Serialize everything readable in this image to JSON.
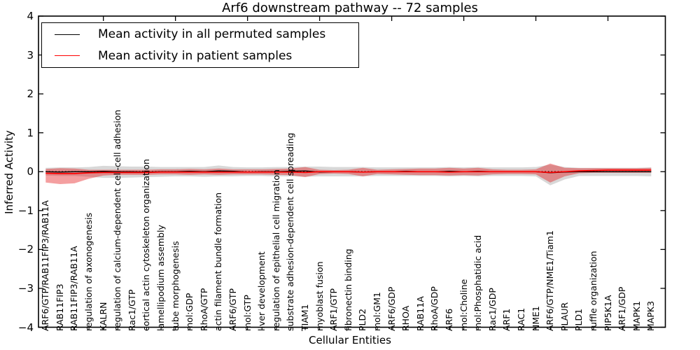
{
  "title": "Arf6 downstream pathway -- 72 samples",
  "axes": {
    "ylabel": "Inferred Activity",
    "xlabel": "Cellular Entities",
    "yticks": [
      4,
      3,
      2,
      1,
      0,
      -1,
      -2,
      -3,
      -4
    ],
    "ylim": [
      -4,
      4
    ]
  },
  "legend": {
    "position": "upper left",
    "items": [
      {
        "label": "Mean activity in all permuted samples",
        "color": "#000000"
      },
      {
        "label": "Mean activity in patient samples",
        "color": "#ff0000"
      }
    ]
  },
  "chart_data": {
    "type": "line",
    "title": "Arf6 downstream pathway -- 72 samples",
    "xlabel": "Cellular Entities",
    "ylabel": "Inferred Activity",
    "ylim": [
      -4,
      4
    ],
    "grid": false,
    "zero_line_dotted": true,
    "legend_position": "upper left",
    "categories": [
      "ARF6/GTP/RAB11FIP3/RAB11A",
      "RAB11FIP3",
      "RAB11FIP3/RAB11A",
      "regulation of axonogenesis",
      "KALRN",
      "regulation of calcium-dependent cell-cell adhesion",
      "Rac1/GTP",
      "cortical actin cytoskeleton organization",
      "lamellipodium assembly",
      "tube morphogenesis",
      "mol:GDP",
      "RhoA/GTP",
      "actin filament bundle formation",
      "ARF6/GTP",
      "mol:GTP",
      "liver development",
      "regulation of epithelial cell migration",
      "substrate adhesion-dependent cell spreading",
      "TIAM1",
      "myoblast fusion",
      "ARF1/GTP",
      "fibronectin binding",
      "PLD2",
      "mol:GM1",
      "ARF6/GDP",
      "RHOA",
      "RAB11A",
      "RhoA/GDP",
      "ARF6",
      "mol:Choline",
      "mol:Phosphatidic acid",
      "Rac1/GDP",
      "ARF1",
      "RAC1",
      "NME1",
      "ARF6/GTP/NME1/Tiam1",
      "PLAUR",
      "PLD1",
      "ruffle organization",
      "PIP5K1A",
      "ARF1/GDP",
      "MAPK1",
      "MAPK3"
    ],
    "series": [
      {
        "name": "Mean activity in all permuted samples",
        "color": "#000000",
        "values": [
          0,
          -0.01,
          0,
          0,
          0.01,
          0,
          0,
          -0.01,
          0,
          0,
          0.01,
          0,
          0.02,
          0.01,
          -0.01,
          0,
          0,
          0.01,
          0.02,
          -0.01,
          0,
          0,
          -0.01,
          0,
          0,
          0.01,
          0,
          0,
          0.01,
          0,
          0.01,
          0,
          0,
          0,
          0,
          -0.03,
          -0.01,
          0,
          0,
          0,
          0,
          0,
          0
        ]
      },
      {
        "name": "Mean activity in patient samples",
        "color": "#ff0000",
        "values": [
          -0.04,
          -0.05,
          -0.05,
          -0.03,
          -0.02,
          -0.02,
          -0.02,
          -0.02,
          -0.01,
          -0.01,
          -0.01,
          -0.01,
          -0.01,
          -0.01,
          -0.01,
          -0.01,
          -0.01,
          -0.01,
          -0.02,
          0,
          0,
          0,
          -0.01,
          0,
          0,
          0,
          0,
          0,
          -0.01,
          0,
          0,
          0,
          0,
          0,
          0,
          -0.02,
          0,
          0.02,
          0.03,
          0.04,
          0.04,
          0.04,
          0.04
        ]
      }
    ],
    "bands": [
      {
        "name": "permuted-samples-envelope",
        "color": "#999999",
        "opacity": 0.38,
        "upper": [
          0.1,
          0.11,
          0.11,
          0.12,
          0.15,
          0.14,
          0.13,
          0.13,
          0.12,
          0.12,
          0.12,
          0.12,
          0.16,
          0.12,
          0.11,
          0.11,
          0.12,
          0.12,
          0.13,
          0.13,
          0.12,
          0.12,
          0.12,
          0.11,
          0.11,
          0.11,
          0.11,
          0.11,
          0.12,
          0.11,
          0.12,
          0.11,
          0.11,
          0.11,
          0.12,
          0.18,
          0.12,
          0.1,
          0.1,
          0.1,
          0.1,
          0.1,
          0.11
        ],
        "lower": [
          -0.1,
          -0.11,
          -0.11,
          -0.13,
          -0.16,
          -0.16,
          -0.15,
          -0.14,
          -0.13,
          -0.12,
          -0.12,
          -0.13,
          -0.12,
          -0.12,
          -0.11,
          -0.11,
          -0.12,
          -0.12,
          -0.13,
          -0.12,
          -0.12,
          -0.12,
          -0.12,
          -0.11,
          -0.11,
          -0.11,
          -0.11,
          -0.11,
          -0.12,
          -0.11,
          -0.12,
          -0.11,
          -0.11,
          -0.11,
          -0.12,
          -0.35,
          -0.2,
          -0.11,
          -0.11,
          -0.11,
          -0.11,
          -0.11,
          -0.12
        ]
      },
      {
        "name": "patient-samples-envelope",
        "color": "#e41a1c",
        "opacity": 0.42,
        "upper": [
          0.07,
          0.09,
          0.08,
          0.05,
          0.05,
          0.05,
          0.05,
          0.05,
          0.06,
          0.06,
          0.07,
          0.06,
          0.08,
          0.06,
          0.06,
          0.06,
          0.07,
          0.08,
          0.12,
          0.05,
          0.04,
          0.05,
          0.1,
          0.05,
          0.06,
          0.07,
          0.08,
          0.08,
          0.1,
          0.08,
          0.1,
          0.06,
          0.05,
          0.05,
          0.06,
          0.21,
          0.1,
          0.09,
          0.09,
          0.09,
          0.09,
          0.09,
          0.1
        ],
        "lower": [
          -0.28,
          -0.32,
          -0.3,
          -0.18,
          -0.1,
          -0.08,
          -0.08,
          -0.08,
          -0.07,
          -0.07,
          -0.08,
          -0.07,
          -0.08,
          -0.07,
          -0.07,
          -0.07,
          -0.08,
          -0.09,
          -0.14,
          -0.06,
          -0.05,
          -0.06,
          -0.12,
          -0.06,
          -0.07,
          -0.08,
          -0.09,
          -0.09,
          -0.1,
          -0.09,
          -0.1,
          -0.07,
          -0.06,
          -0.06,
          -0.07,
          -0.28,
          -0.12,
          -0.04,
          -0.03,
          -0.03,
          -0.03,
          -0.03,
          -0.03
        ]
      }
    ]
  }
}
